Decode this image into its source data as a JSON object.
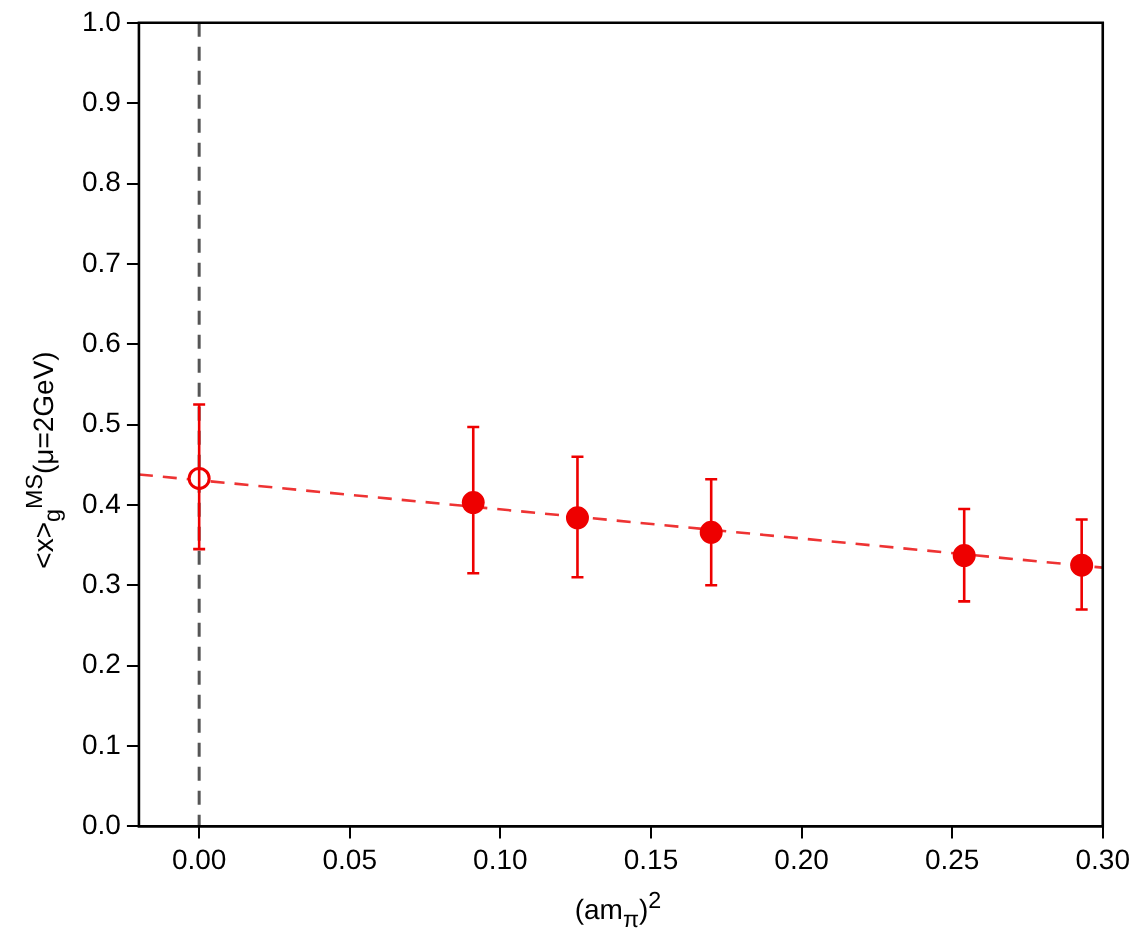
{
  "chart_data": {
    "type": "scatter",
    "xlabel": "(am$_{π}$)$^{2}$",
    "ylabel": "<x>$_{g}$$^{MS}$(μ=2GeV)",
    "xlim": [
      -0.02,
      0.3
    ],
    "xticks": [
      {
        "value": 0,
        "label": "0.00"
      },
      {
        "value": 0.05,
        "label": "0.05"
      },
      {
        "value": 0.1,
        "label": "0.10"
      },
      {
        "value": 0.15,
        "label": "0.15"
      },
      {
        "value": 0.2,
        "label": "0.20"
      },
      {
        "value": 0.25,
        "label": "0.25"
      },
      {
        "value": 0.3,
        "label": "0.30"
      }
    ],
    "ylim": [
      0,
      1
    ],
    "yticks": [
      {
        "value": 0,
        "label": "0.0"
      },
      {
        "value": 0.1,
        "label": "0.1"
      },
      {
        "value": 0.2,
        "label": "0.2"
      },
      {
        "value": 0.3,
        "label": "0.3"
      },
      {
        "value": 0.4,
        "label": "0.4"
      },
      {
        "value": 0.5,
        "label": "0.5"
      },
      {
        "value": 0.6,
        "label": "0.6"
      },
      {
        "value": 0.7,
        "label": "0.7"
      },
      {
        "value": 0.8,
        "label": "0.8"
      },
      {
        "value": 0.9,
        "label": "0.9"
      },
      {
        "value": 1,
        "label": "1.0"
      }
    ],
    "grid": false,
    "legend": false,
    "marker": "circle",
    "ref_lines": [
      {
        "axis": "x",
        "value": 0,
        "color": "#555555",
        "line_style": "dashed"
      }
    ],
    "series": [
      {
        "color": "#ee0000",
        "x": [
          0
        ],
        "values": [
          0.433
        ],
        "errors": [
          [
            0.345,
            0.525
          ]
        ]
      },
      {
        "color": "#ee0000",
        "x": [
          0.091,
          0.1256,
          0.17,
          0.254,
          0.293
        ],
        "values": [
          0.403,
          0.384,
          0.366,
          0.337,
          0.325
        ],
        "errors": [
          [
            0.315,
            0.497
          ],
          [
            0.31,
            0.46
          ],
          [
            0.3,
            0.432
          ],
          [
            0.28,
            0.395
          ],
          [
            0.27,
            0.382
          ]
        ]
      },
      {
        "type": "line",
        "color": "#ee3333",
        "x": [
          -0.02,
          0.3
        ],
        "values": [
          0.438,
          0.322
        ],
        "line_style": "dashed",
        "marker": "none"
      }
    ]
  }
}
